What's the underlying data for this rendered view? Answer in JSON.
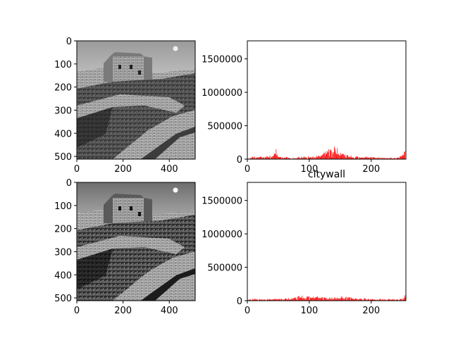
{
  "figure": {
    "colors": {
      "hist_bar": "#ff0000",
      "axes": "#000000",
      "background": "#ffffff"
    }
  },
  "chart_data": [
    {
      "type": "heatmap",
      "description_image": "grayscale photograph (Great Wall)",
      "image_size": [
        512,
        512
      ],
      "xticks": [
        0,
        200,
        400
      ],
      "yticks": [
        0,
        100,
        200,
        300,
        400,
        500
      ],
      "xlim": [
        0,
        512
      ],
      "ylim": [
        512,
        0
      ],
      "colormap": "gray"
    },
    {
      "type": "bar",
      "title": "",
      "xlim": [
        0,
        256
      ],
      "ylim": [
        0,
        1770000
      ],
      "xticks": [
        0,
        100,
        200
      ],
      "yticks": [
        0,
        500000,
        1000000,
        1500000
      ],
      "color": "#ff0000",
      "bins": "0-255",
      "profile": [
        [
          0,
          8000
        ],
        [
          5,
          15000
        ],
        [
          8,
          38000
        ],
        [
          12,
          28000
        ],
        [
          18,
          30000
        ],
        [
          24,
          26000
        ],
        [
          30,
          34000
        ],
        [
          36,
          42000
        ],
        [
          42,
          38000
        ],
        [
          46,
          120000
        ],
        [
          50,
          28000
        ],
        [
          60,
          22000
        ],
        [
          70,
          20000
        ],
        [
          80,
          24000
        ],
        [
          90,
          28000
        ],
        [
          100,
          30000
        ],
        [
          110,
          34000
        ],
        [
          115,
          40000
        ],
        [
          120,
          60000
        ],
        [
          125,
          80000
        ],
        [
          130,
          110000
        ],
        [
          135,
          128000
        ],
        [
          140,
          130000
        ],
        [
          145,
          118000
        ],
        [
          150,
          85000
        ],
        [
          160,
          45000
        ],
        [
          170,
          34000
        ],
        [
          180,
          30000
        ],
        [
          190,
          26000
        ],
        [
          200,
          22000
        ],
        [
          210,
          20000
        ],
        [
          220,
          18000
        ],
        [
          230,
          16000
        ],
        [
          240,
          14000
        ],
        [
          245,
          20000
        ],
        [
          254,
          95000
        ],
        [
          255,
          12000
        ]
      ]
    },
    {
      "type": "heatmap",
      "description_image": "grayscale photograph (Great Wall), histogram-equalized",
      "image_size": [
        512,
        512
      ],
      "xticks": [
        0,
        200,
        400
      ],
      "yticks": [
        0,
        100,
        200,
        300,
        400,
        500
      ],
      "xlim": [
        0,
        512
      ],
      "ylim": [
        512,
        0
      ],
      "colormap": "gray"
    },
    {
      "type": "bar",
      "title": "citywall",
      "xlim": [
        0,
        256
      ],
      "ylim": [
        0,
        1770000
      ],
      "xticks": [
        0,
        100,
        200
      ],
      "yticks": [
        0,
        500000,
        1000000,
        1500000
      ],
      "color": "#ff0000",
      "bins": "0-255",
      "profile": [
        [
          0,
          12000
        ],
        [
          5,
          18000
        ],
        [
          10,
          22000
        ],
        [
          20,
          20000
        ],
        [
          30,
          18000
        ],
        [
          40,
          20000
        ],
        [
          50,
          22000
        ],
        [
          60,
          25000
        ],
        [
          70,
          30000
        ],
        [
          80,
          45000
        ],
        [
          85,
          55000
        ],
        [
          90,
          52000
        ],
        [
          100,
          50000
        ],
        [
          105,
          58000
        ],
        [
          110,
          50000
        ],
        [
          120,
          38000
        ],
        [
          130,
          32000
        ],
        [
          140,
          38000
        ],
        [
          150,
          45000
        ],
        [
          160,
          42000
        ],
        [
          170,
          30000
        ],
        [
          180,
          26000
        ],
        [
          190,
          24000
        ],
        [
          200,
          22000
        ],
        [
          210,
          20000
        ],
        [
          220,
          18000
        ],
        [
          230,
          18000
        ],
        [
          240,
          16000
        ],
        [
          250,
          20000
        ],
        [
          253,
          40000
        ],
        [
          255,
          100000
        ]
      ]
    }
  ]
}
